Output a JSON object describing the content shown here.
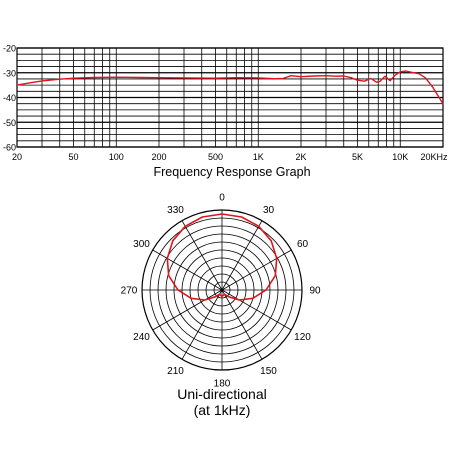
{
  "chart_data": [
    {
      "type": "line",
      "title": "Frequency Response Graph",
      "x_scale": "log",
      "xlim": [
        20,
        20000
      ],
      "ylim": [
        -60,
        -20
      ],
      "x_ticks": [
        20,
        50,
        100,
        200,
        500,
        1000,
        2000,
        5000,
        10000,
        20000
      ],
      "x_tick_labels": [
        "20",
        "50",
        "100",
        "200",
        "500",
        "1K",
        "2K",
        "5K",
        "10K",
        "20KHz"
      ],
      "y_ticks": [
        -20,
        -30,
        -40,
        -50,
        -60
      ],
      "y_tick_labels": [
        "-20",
        "-30",
        "-40",
        "-50",
        "-60"
      ],
      "grid": true,
      "series_color": "#e0141c",
      "series": [
        {
          "x": [
            20,
            25,
            30,
            40,
            50,
            70,
            100,
            150,
            200,
            300,
            500,
            700,
            1000,
            1300,
            1500,
            1700,
            2000,
            2500,
            3000,
            3500,
            4000,
            4500,
            5000,
            5600,
            6200,
            6800,
            7200,
            7800,
            8500,
            9200,
            10000,
            11000,
            12000,
            13500,
            15000,
            17000,
            20000
          ],
          "y": [
            -35,
            -34,
            -33.3,
            -32.6,
            -32.2,
            -31.9,
            -31.8,
            -31.9,
            -32,
            -32.1,
            -32.2,
            -32,
            -32.1,
            -32.4,
            -32.3,
            -31.2,
            -31.6,
            -31.3,
            -31.2,
            -31.4,
            -31.3,
            -32,
            -33,
            -33.4,
            -32.3,
            -33.8,
            -33.5,
            -31.4,
            -33.2,
            -31,
            -29.6,
            -29.3,
            -29.8,
            -30.4,
            -32,
            -36,
            -42.5
          ]
        }
      ]
    },
    {
      "type": "polar",
      "title": "Uni-directional",
      "subtitle": "(at 1kHz)",
      "angle_ticks": [
        0,
        30,
        60,
        90,
        120,
        150,
        180,
        210,
        240,
        270,
        300,
        330
      ],
      "angle_tick_labels": [
        "0",
        "30",
        "60",
        "90",
        "120",
        "150",
        "180",
        "210",
        "240",
        "270",
        "300",
        "330"
      ],
      "grid": true,
      "pattern": "cardioid",
      "series_color": "#e0141c",
      "series": [
        {
          "angle": [
            0,
            15,
            30,
            45,
            60,
            75,
            90,
            105,
            120,
            135,
            150,
            165,
            180,
            195,
            210,
            225,
            240,
            255,
            270,
            285,
            300,
            315,
            330,
            345,
            360
          ],
          "level": [
            0.95,
            0.945,
            0.92,
            0.87,
            0.79,
            0.69,
            0.55,
            0.4,
            0.25,
            0.12,
            0.06,
            0.07,
            0.08,
            0.07,
            0.06,
            0.12,
            0.25,
            0.4,
            0.55,
            0.69,
            0.79,
            0.87,
            0.92,
            0.945,
            0.95
          ]
        }
      ]
    }
  ]
}
